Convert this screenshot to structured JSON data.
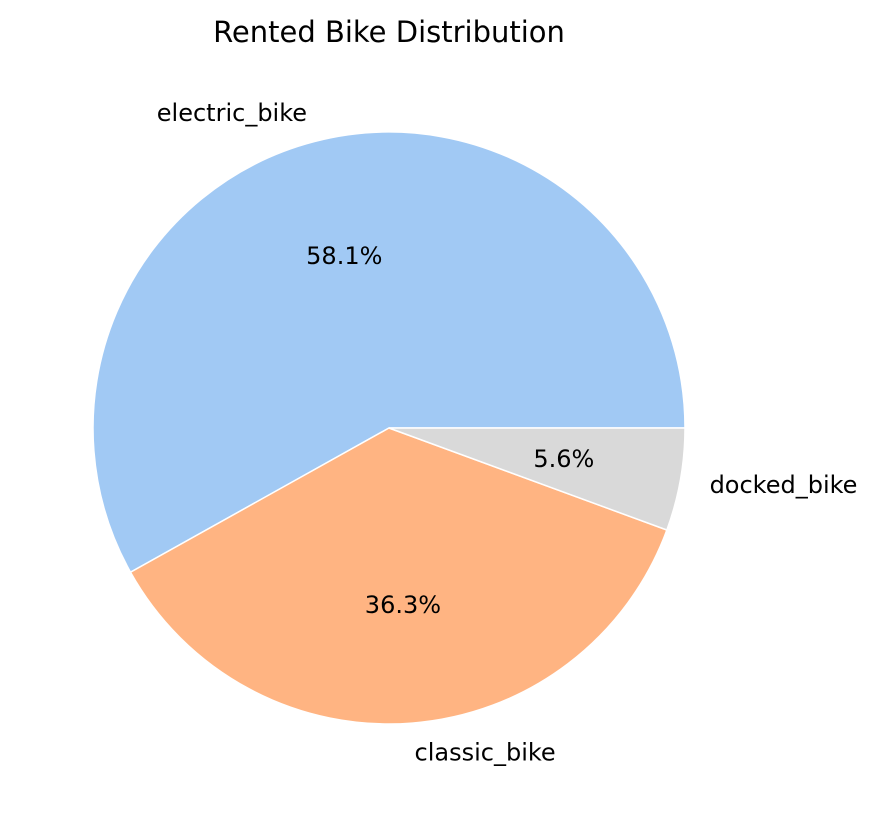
{
  "chart_data": {
    "type": "pie",
    "title": "Rented Bike Distribution",
    "slices": [
      {
        "label": "electric_bike",
        "value": 58.1,
        "pct_label": "58.1%",
        "color": "#a1c9f4"
      },
      {
        "label": "classic_bike",
        "value": 36.3,
        "pct_label": "36.3%",
        "color": "#ffb482"
      },
      {
        "label": "docked_bike",
        "value": 5.6,
        "pct_label": "5.6%",
        "color": "#d9d9d9"
      }
    ],
    "start_angle_deg": 0,
    "direction": "counterclockwise",
    "legend": "none"
  }
}
